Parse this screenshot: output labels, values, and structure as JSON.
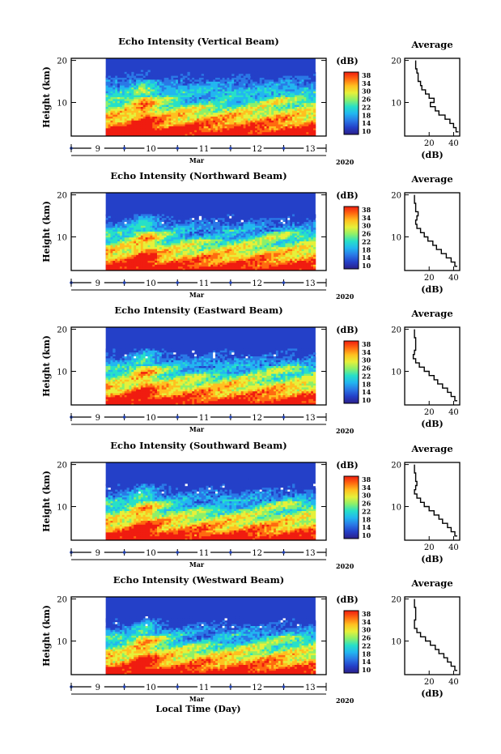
{
  "figure": {
    "xlabel": "Local Time (Day)",
    "x_month": "Mar",
    "x_year": "2020",
    "ylabel": "Height (km)",
    "colorbar_unit": "(dB)",
    "profile_title": "Average",
    "profile_xlabel": "(dB)"
  },
  "colors": {
    "colormap": [
      "#2b1f8a",
      "#2440c8",
      "#2a78e6",
      "#22b6f0",
      "#27e0c8",
      "#8cf06a",
      "#e6f03a",
      "#ffc020",
      "#ff6a10",
      "#f01c10"
    ],
    "empty": "#ffffff"
  },
  "chart_data": [
    {
      "type": "heatmap",
      "title": "Echo Intensity (Vertical Beam)",
      "x_ticks": [
        "9",
        "10",
        "11",
        "12",
        "13"
      ],
      "y_ticks": [
        "20",
        "10"
      ],
      "xlim": [
        8.5,
        13.3
      ],
      "ylim": [
        2,
        20.5
      ],
      "data_start_day": 9.15,
      "data_end_day": 13.1,
      "colorbar_ticks": [
        "38",
        "34",
        "30",
        "26",
        "22",
        "18",
        "14",
        "10"
      ],
      "clim": [
        10,
        38
      ],
      "profile": {
        "title": "Average",
        "xlabel": "(dB)",
        "x_ticks": [
          "20",
          "40"
        ],
        "y_ticks": [
          "20",
          "10"
        ],
        "xlim": [
          0,
          45
        ],
        "ylim": [
          2,
          20.5
        ],
        "points": [
          [
            9,
            20
          ],
          [
            10,
            18
          ],
          [
            11,
            17
          ],
          [
            13,
            15
          ],
          [
            14,
            14
          ],
          [
            17,
            13
          ],
          [
            20,
            12
          ],
          [
            24,
            11
          ],
          [
            21,
            10
          ],
          [
            25,
            9
          ],
          [
            28,
            8
          ],
          [
            33,
            7
          ],
          [
            37,
            6
          ],
          [
            40,
            5
          ],
          [
            42,
            4
          ],
          [
            44,
            3
          ]
        ]
      }
    },
    {
      "type": "heatmap",
      "title": "Echo Intensity (Northward Beam)",
      "x_ticks": [
        "9",
        "10",
        "11",
        "12",
        "13"
      ],
      "y_ticks": [
        "20",
        "10"
      ],
      "xlim": [
        8.5,
        13.3
      ],
      "ylim": [
        2,
        20.5
      ],
      "data_start_day": 9.15,
      "data_end_day": 13.1,
      "colorbar_ticks": [
        "38",
        "34",
        "30",
        "26",
        "22",
        "18",
        "14",
        "10"
      ],
      "clim": [
        10,
        38
      ],
      "profile": {
        "title": "Average",
        "xlabel": "(dB)",
        "x_ticks": [
          "20",
          "40"
        ],
        "y_ticks": [
          "20",
          "10"
        ],
        "xlim": [
          0,
          45
        ],
        "ylim": [
          2,
          20.5
        ],
        "points": [
          [
            8,
            20
          ],
          [
            9,
            18
          ],
          [
            11,
            16
          ],
          [
            10,
            15
          ],
          [
            9,
            14
          ],
          [
            10,
            13
          ],
          [
            13,
            12
          ],
          [
            16,
            11
          ],
          [
            19,
            10
          ],
          [
            23,
            9
          ],
          [
            26,
            8
          ],
          [
            30,
            7
          ],
          [
            34,
            6
          ],
          [
            38,
            5
          ],
          [
            41,
            4
          ],
          [
            43,
            3
          ]
        ]
      }
    },
    {
      "type": "heatmap",
      "title": "Echo Intensity (Eastward Beam)",
      "x_ticks": [
        "9",
        "10",
        "11",
        "12",
        "13"
      ],
      "y_ticks": [
        "20",
        "10"
      ],
      "xlim": [
        8.5,
        13.3
      ],
      "ylim": [
        2,
        20.5
      ],
      "data_start_day": 9.15,
      "data_end_day": 13.1,
      "colorbar_ticks": [
        "38",
        "34",
        "30",
        "26",
        "22",
        "18",
        "14",
        "10"
      ],
      "clim": [
        10,
        38
      ],
      "profile": {
        "title": "Average",
        "xlabel": "(dB)",
        "x_ticks": [
          "20",
          "40"
        ],
        "y_ticks": [
          "20",
          "10"
        ],
        "xlim": [
          0,
          45
        ],
        "ylim": [
          2,
          20.5
        ],
        "points": [
          [
            8,
            20
          ],
          [
            9,
            18
          ],
          [
            9,
            16
          ],
          [
            8,
            15
          ],
          [
            7,
            14
          ],
          [
            9,
            13
          ],
          [
            12,
            12
          ],
          [
            16,
            11
          ],
          [
            20,
            10
          ],
          [
            24,
            9
          ],
          [
            27,
            8
          ],
          [
            31,
            7
          ],
          [
            35,
            6
          ],
          [
            38,
            5
          ],
          [
            41,
            4
          ],
          [
            43,
            3
          ]
        ]
      }
    },
    {
      "type": "heatmap",
      "title": "Echo Intensity (Southward Beam)",
      "x_ticks": [
        "9",
        "10",
        "11",
        "12",
        "13"
      ],
      "y_ticks": [
        "20",
        "10"
      ],
      "xlim": [
        8.5,
        13.3
      ],
      "ylim": [
        2,
        20.5
      ],
      "data_start_day": 9.15,
      "data_end_day": 13.1,
      "colorbar_ticks": [
        "38",
        "34",
        "30",
        "26",
        "22",
        "18",
        "14",
        "10"
      ],
      "clim": [
        10,
        38
      ],
      "profile": {
        "title": "Average",
        "xlabel": "(dB)",
        "x_ticks": [
          "20",
          "40"
        ],
        "y_ticks": [
          "20",
          "10"
        ],
        "xlim": [
          0,
          45
        ],
        "ylim": [
          2,
          20.5
        ],
        "points": [
          [
            8,
            20
          ],
          [
            9,
            18
          ],
          [
            10,
            16
          ],
          [
            9,
            15
          ],
          [
            8,
            14
          ],
          [
            10,
            13
          ],
          [
            13,
            12
          ],
          [
            16,
            11
          ],
          [
            20,
            10
          ],
          [
            24,
            9
          ],
          [
            28,
            8
          ],
          [
            31,
            7
          ],
          [
            35,
            6
          ],
          [
            38,
            5
          ],
          [
            41,
            4
          ],
          [
            43,
            3
          ]
        ]
      }
    },
    {
      "type": "heatmap",
      "title": "Echo Intensity (Westward Beam)",
      "x_ticks": [
        "9",
        "10",
        "11",
        "12",
        "13"
      ],
      "y_ticks": [
        "20",
        "10"
      ],
      "xlim": [
        8.5,
        13.3
      ],
      "ylim": [
        2,
        20.5
      ],
      "data_start_day": 9.15,
      "data_end_day": 13.1,
      "colorbar_ticks": [
        "38",
        "34",
        "30",
        "26",
        "22",
        "18",
        "14",
        "10"
      ],
      "clim": [
        10,
        38
      ],
      "profile": {
        "title": "Average",
        "xlabel": "(dB)",
        "x_ticks": [
          "20",
          "40"
        ],
        "y_ticks": [
          "20",
          "10"
        ],
        "xlim": [
          0,
          45
        ],
        "ylim": [
          2,
          20.5
        ],
        "points": [
          [
            8,
            20
          ],
          [
            9,
            18
          ],
          [
            9,
            16
          ],
          [
            8,
            15
          ],
          [
            8,
            14
          ],
          [
            10,
            13
          ],
          [
            13,
            12
          ],
          [
            17,
            11
          ],
          [
            21,
            10
          ],
          [
            25,
            9
          ],
          [
            28,
            8
          ],
          [
            32,
            7
          ],
          [
            35,
            6
          ],
          [
            38,
            5
          ],
          [
            41,
            4
          ],
          [
            43,
            3
          ]
        ]
      }
    }
  ]
}
